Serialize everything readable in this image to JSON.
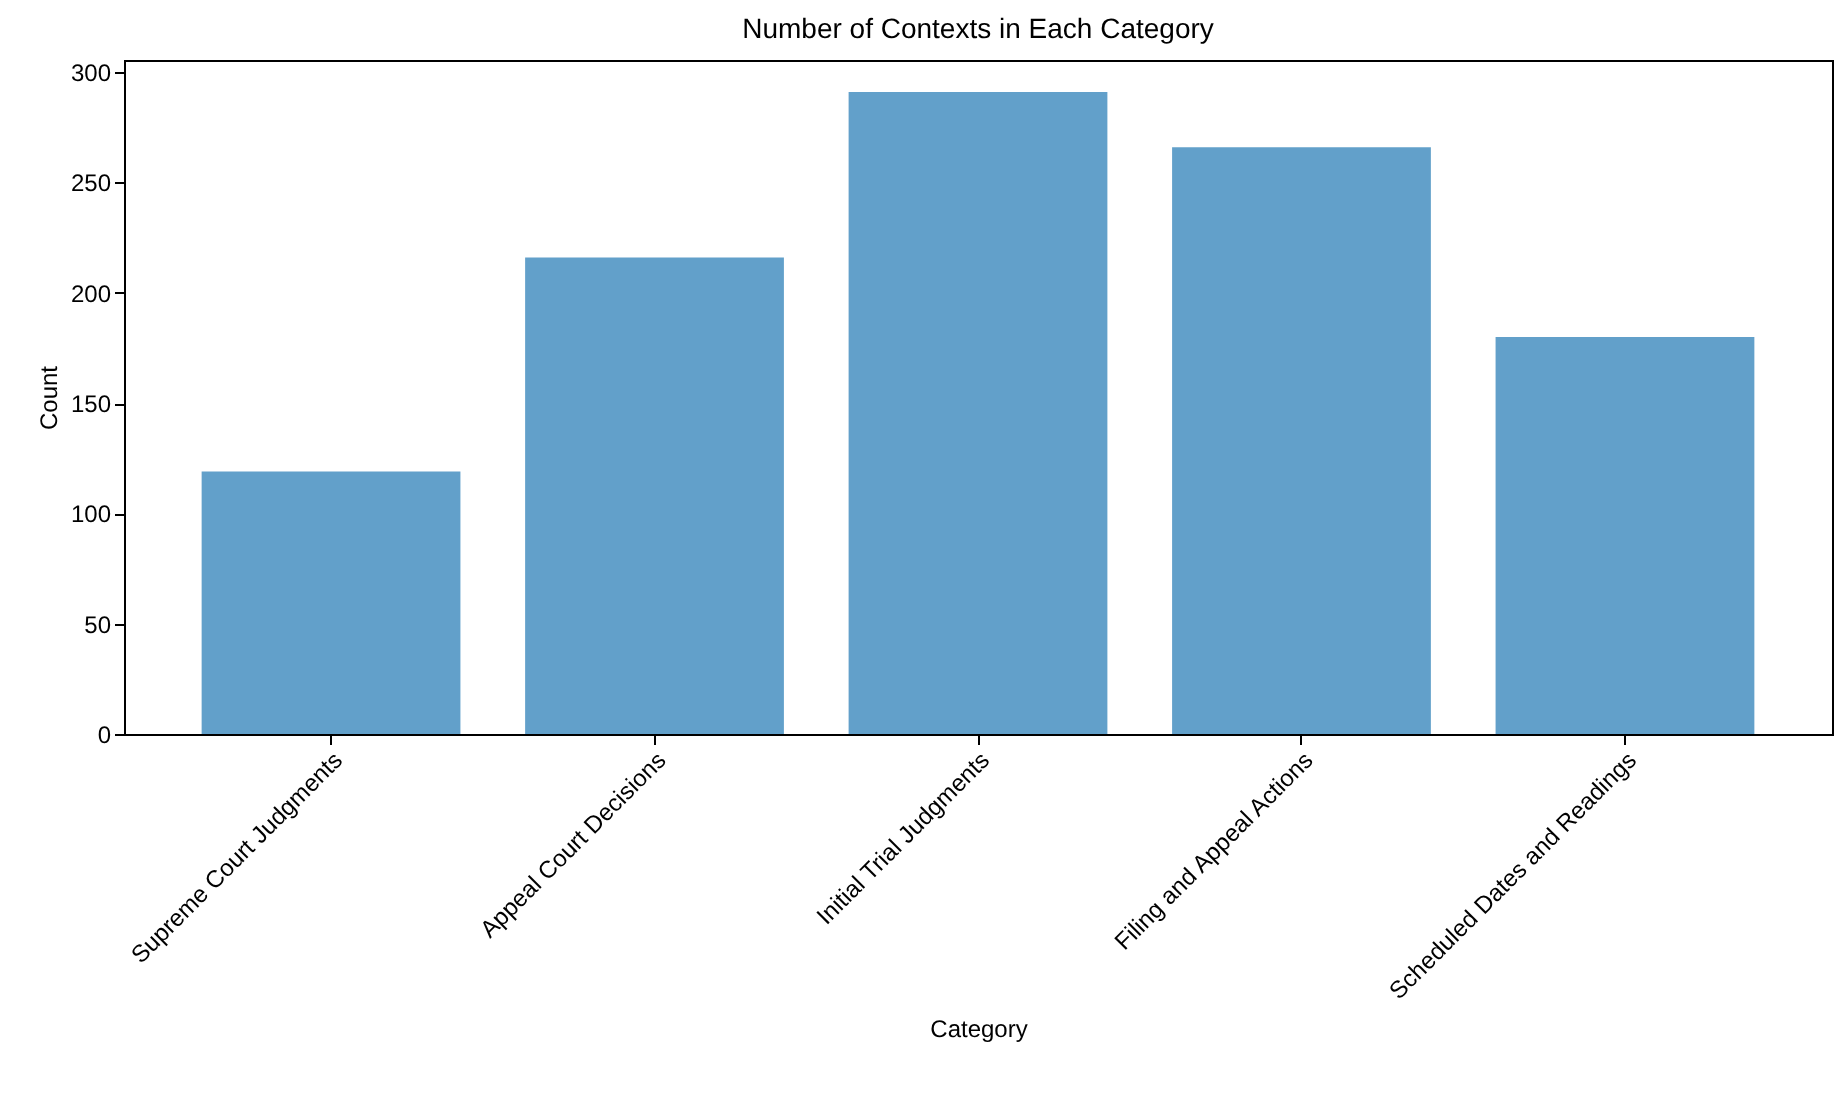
{
  "chart_data": {
    "type": "bar",
    "title": "Number of Contexts in Each Category",
    "xlabel": "Category",
    "ylabel": "Count",
    "categories": [
      "Supreme Court Judgments",
      "Appeal Court Decisions",
      "Initial Trial Judgments",
      "Filing and Appeal Actions",
      "Scheduled Dates and Readings"
    ],
    "values": [
      119,
      216,
      291,
      266,
      180
    ],
    "color": "#62a0ca",
    "ylim": [
      0,
      305.5
    ],
    "yticks": [
      0,
      50,
      100,
      150,
      200,
      250,
      300
    ],
    "grid": false
  }
}
